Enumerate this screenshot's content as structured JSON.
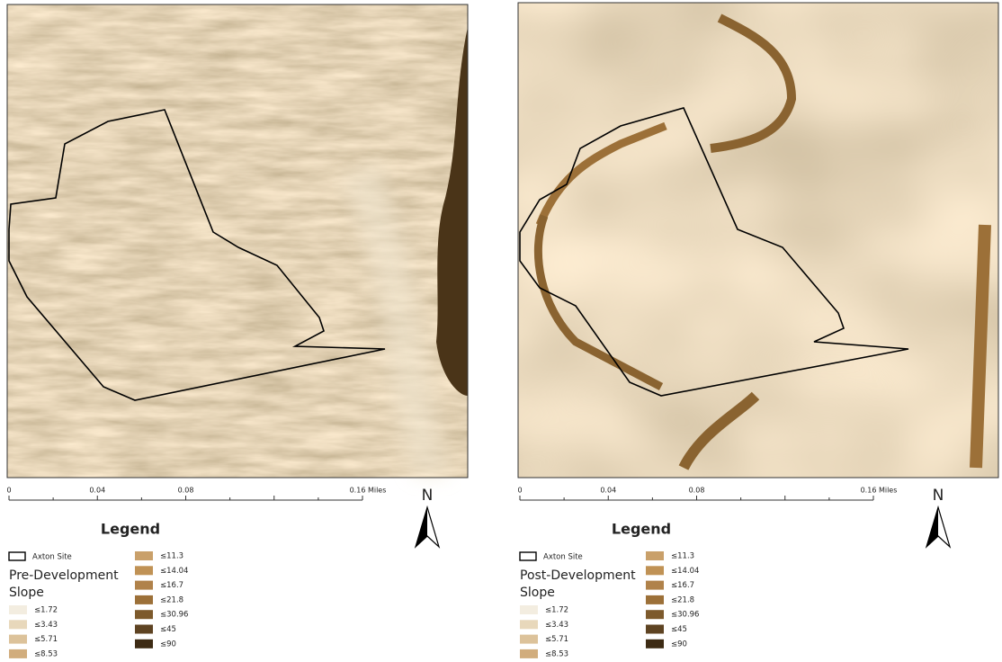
{
  "panels": [
    {
      "north": "N",
      "scale_bar": [
        "0",
        "0.04",
        "0.08",
        "0.16 Miles"
      ],
      "legend": {
        "title": "Legend",
        "site_label": "Axton Site",
        "layer_title": "Pre-Development",
        "layer_subtitle": "Slope",
        "classes": [
          {
            "label": "≤1.72",
            "color": "#f3ede0"
          },
          {
            "label": "≤3.43",
            "color": "#e8d8bb"
          },
          {
            "label": "≤5.71",
            "color": "#dcc29a"
          },
          {
            "label": "≤8.53",
            "color": "#d1ad7d"
          },
          {
            "label": "≤11.3",
            "color": "#c9a06a"
          },
          {
            "label": "≤14.04",
            "color": "#c09255"
          },
          {
            "label": "≤16.7",
            "color": "#b0824a"
          },
          {
            "label": "≤21.8",
            "color": "#9c7038"
          },
          {
            "label": "≤30.96",
            "color": "#7d5a2c"
          },
          {
            "label": "≤45",
            "color": "#5e4322"
          },
          {
            "label": "≤90",
            "color": "#3d2b14"
          }
        ]
      }
    },
    {
      "north": "N",
      "scale_bar": [
        "0",
        "0.04",
        "0.08",
        "0.16 Miles"
      ],
      "legend": {
        "title": "Legend",
        "site_label": "Axton Site",
        "layer_title": "Post-Development",
        "layer_subtitle": "Slope",
        "classes": [
          {
            "label": "≤1.72",
            "color": "#f3ede0"
          },
          {
            "label": "≤3.43",
            "color": "#e8d8bb"
          },
          {
            "label": "≤5.71",
            "color": "#dcc29a"
          },
          {
            "label": "≤8.53",
            "color": "#d1ad7d"
          },
          {
            "label": "≤11.3",
            "color": "#c9a06a"
          },
          {
            "label": "≤14.04",
            "color": "#c09255"
          },
          {
            "label": "≤16.7",
            "color": "#b0824a"
          },
          {
            "label": "≤21.8",
            "color": "#9c7038"
          },
          {
            "label": "≤30.96",
            "color": "#7d5a2c"
          },
          {
            "label": "≤45",
            "color": "#5e4322"
          },
          {
            "label": "≤90",
            "color": "#3d2b14"
          }
        ]
      }
    }
  ]
}
